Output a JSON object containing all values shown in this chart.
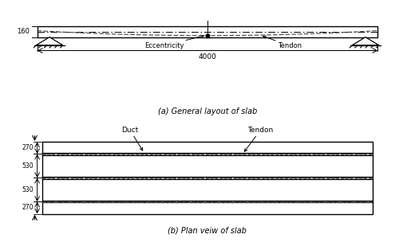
{
  "bg_color": "#ffffff",
  "line_color": "#000000",
  "dash_color": "#444444",
  "fig_width": 5.0,
  "fig_height": 3.14,
  "dpi": 100,
  "caption_a": "(a) General layout of slab",
  "caption_b": "(b) Plan veiw of slab",
  "dim_160": "160",
  "dim_4000": "4000",
  "dim_270a": "270",
  "dim_530a": "530",
  "dim_530b": "530",
  "dim_270b": "270",
  "label_eccentricity": "Eccentricity",
  "label_tendon_a": "Tendon",
  "label_duct": "Duct",
  "label_tendon_b": "Tendon"
}
